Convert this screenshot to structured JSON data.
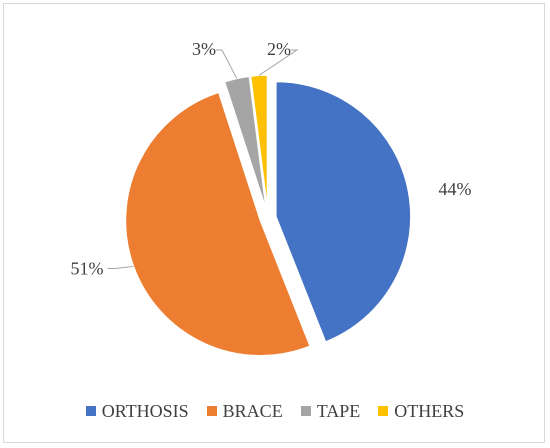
{
  "chart_data": {
    "type": "pie",
    "categories": [
      "ORTHOSIS",
      "BRACE",
      "TAPE",
      "OTHERS"
    ],
    "values": [
      44,
      51,
      3,
      2
    ],
    "labels": [
      "44%",
      "51%",
      "3%",
      "2%"
    ],
    "colors": [
      "#4472c4",
      "#ed7d31",
      "#a5a5a5",
      "#ffc000"
    ],
    "exploded": true,
    "legend_position": "bottom",
    "title": ""
  }
}
